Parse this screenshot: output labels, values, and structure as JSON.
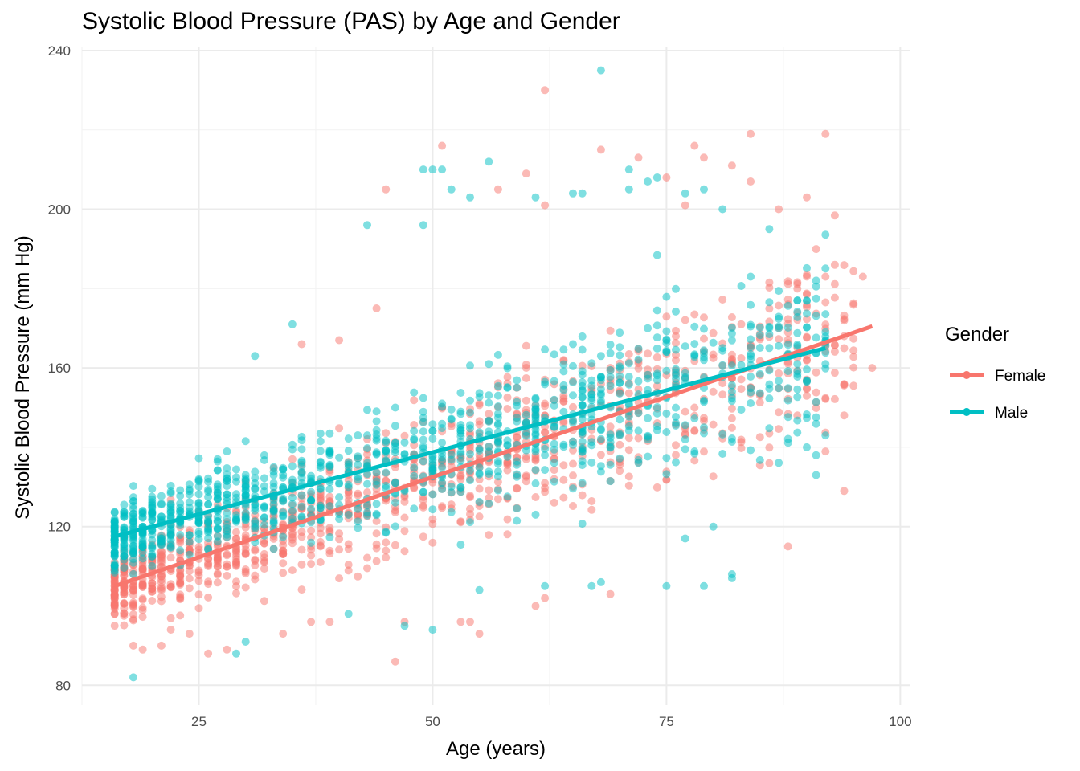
{
  "chart_data": {
    "type": "scatter",
    "title": "Systolic Blood Pressure (PAS) by Age and Gender",
    "xlabel": "Age (years)",
    "ylabel": "Systolic Blood Pressure (mm Hg)",
    "xlim": [
      12.5,
      101
    ],
    "ylim": [
      75,
      241
    ],
    "x_ticks": [
      25,
      50,
      75,
      100
    ],
    "y_ticks": [
      80,
      120,
      160,
      200,
      240
    ],
    "grid": true,
    "legend": {
      "title": "Gender",
      "placement": "right"
    },
    "series": [
      {
        "name": "Female",
        "color": "#F8766D",
        "trend": {
          "x": [
            16,
            97
          ],
          "y": [
            105.0,
            170.5
          ]
        },
        "outliers": [
          {
            "x": 62,
            "y": 230
          },
          {
            "x": 84,
            "y": 219
          },
          {
            "x": 92,
            "y": 219
          },
          {
            "x": 51,
            "y": 216
          },
          {
            "x": 68,
            "y": 215
          },
          {
            "x": 78,
            "y": 216
          },
          {
            "x": 72,
            "y": 213
          },
          {
            "x": 79,
            "y": 213
          },
          {
            "x": 82,
            "y": 211
          },
          {
            "x": 60,
            "y": 209
          },
          {
            "x": 75,
            "y": 208
          },
          {
            "x": 84,
            "y": 207
          },
          {
            "x": 45,
            "y": 205
          },
          {
            "x": 57,
            "y": 205
          },
          {
            "x": 90,
            "y": 203
          },
          {
            "x": 77,
            "y": 201
          },
          {
            "x": 87,
            "y": 200
          },
          {
            "x": 62,
            "y": 201
          },
          {
            "x": 96,
            "y": 183
          },
          {
            "x": 93,
            "y": 186
          },
          {
            "x": 44,
            "y": 175
          },
          {
            "x": 36,
            "y": 166
          },
          {
            "x": 40,
            "y": 167
          },
          {
            "x": 94,
            "y": 168
          },
          {
            "x": 97,
            "y": 160
          },
          {
            "x": 94,
            "y": 129
          },
          {
            "x": 88,
            "y": 115
          },
          {
            "x": 16,
            "y": 98
          },
          {
            "x": 18,
            "y": 90
          },
          {
            "x": 19,
            "y": 89
          },
          {
            "x": 21,
            "y": 90
          },
          {
            "x": 24,
            "y": 93
          },
          {
            "x": 26,
            "y": 88
          },
          {
            "x": 28,
            "y": 89
          },
          {
            "x": 34,
            "y": 93
          },
          {
            "x": 37,
            "y": 96
          },
          {
            "x": 39,
            "y": 96
          },
          {
            "x": 46,
            "y": 86
          },
          {
            "x": 47,
            "y": 96
          },
          {
            "x": 53,
            "y": 96
          },
          {
            "x": 55,
            "y": 93
          },
          {
            "x": 54,
            "y": 96
          },
          {
            "x": 62,
            "y": 102
          },
          {
            "x": 61,
            "y": 100
          },
          {
            "x": 69,
            "y": 103
          }
        ]
      },
      {
        "name": "Male",
        "color": "#00BFC4",
        "trend": {
          "x": [
            16,
            92
          ],
          "y": [
            117.5,
            165.0
          ]
        },
        "outliers": [
          {
            "x": 68,
            "y": 235
          },
          {
            "x": 49,
            "y": 210
          },
          {
            "x": 50,
            "y": 210
          },
          {
            "x": 51,
            "y": 210
          },
          {
            "x": 56,
            "y": 212
          },
          {
            "x": 71,
            "y": 210
          },
          {
            "x": 73,
            "y": 207
          },
          {
            "x": 74,
            "y": 208
          },
          {
            "x": 52,
            "y": 205
          },
          {
            "x": 54,
            "y": 203
          },
          {
            "x": 61,
            "y": 203
          },
          {
            "x": 65,
            "y": 204
          },
          {
            "x": 66,
            "y": 204
          },
          {
            "x": 71,
            "y": 205
          },
          {
            "x": 79,
            "y": 205
          },
          {
            "x": 77,
            "y": 204
          },
          {
            "x": 81,
            "y": 200
          },
          {
            "x": 43,
            "y": 196
          },
          {
            "x": 49,
            "y": 196
          },
          {
            "x": 86,
            "y": 195
          },
          {
            "x": 91,
            "y": 182
          },
          {
            "x": 84,
            "y": 183
          },
          {
            "x": 89,
            "y": 177
          },
          {
            "x": 90,
            "y": 177
          },
          {
            "x": 35,
            "y": 171
          },
          {
            "x": 31,
            "y": 163
          },
          {
            "x": 92,
            "y": 143
          },
          {
            "x": 90,
            "y": 140
          },
          {
            "x": 91,
            "y": 138
          },
          {
            "x": 91,
            "y": 133
          },
          {
            "x": 18,
            "y": 82
          },
          {
            "x": 29,
            "y": 88
          },
          {
            "x": 30,
            "y": 91
          },
          {
            "x": 50,
            "y": 94
          },
          {
            "x": 47,
            "y": 95
          },
          {
            "x": 41,
            "y": 98
          },
          {
            "x": 55,
            "y": 104
          },
          {
            "x": 62,
            "y": 105
          },
          {
            "x": 67,
            "y": 105
          },
          {
            "x": 68,
            "y": 106
          },
          {
            "x": 75,
            "y": 105
          },
          {
            "x": 79,
            "y": 105
          },
          {
            "x": 82,
            "y": 108
          },
          {
            "x": 82,
            "y": 107
          },
          {
            "x": 77,
            "y": 117
          },
          {
            "x": 80,
            "y": 120
          }
        ]
      }
    ]
  }
}
